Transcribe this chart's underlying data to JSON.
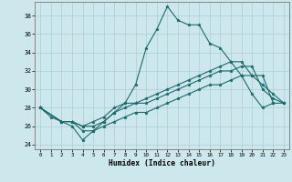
{
  "xlabel": "Humidex (Indice chaleur)",
  "xlim": [
    -0.5,
    23.5
  ],
  "ylim": [
    23.5,
    39.5
  ],
  "yticks": [
    24,
    26,
    28,
    30,
    32,
    34,
    36,
    38
  ],
  "xticks": [
    0,
    1,
    2,
    3,
    4,
    5,
    6,
    7,
    8,
    9,
    10,
    11,
    12,
    13,
    14,
    15,
    16,
    17,
    18,
    19,
    20,
    21,
    22,
    23
  ],
  "bg_color": "#cde8ed",
  "line_color": "#1a6b6b",
  "grid_color": "#a8cdd4",
  "line1_x": [
    0,
    1,
    2,
    3,
    4,
    5,
    6,
    7,
    8,
    9,
    10,
    11,
    12,
    13,
    14,
    15,
    16,
    17,
    18,
    19,
    20,
    21,
    22
  ],
  "line1_y": [
    28,
    27,
    26.5,
    26,
    24.5,
    25.5,
    26.5,
    27.5,
    28.5,
    30.5,
    34.5,
    36.5,
    39,
    37.5,
    37,
    37,
    35,
    34.5,
    33,
    31.5,
    29.5,
    28,
    28.5
  ],
  "line2_x": [
    0,
    2,
    3,
    4,
    5,
    6,
    7,
    8,
    9,
    10,
    11,
    12,
    13,
    14,
    15,
    16,
    17,
    18,
    19,
    20,
    21,
    22,
    23
  ],
  "line2_y": [
    28,
    26.5,
    26.5,
    26,
    26.5,
    27,
    28,
    28.5,
    28.5,
    29,
    29.5,
    30,
    30.5,
    31,
    31.5,
    32,
    32.5,
    33,
    33,
    31.5,
    30.5,
    29.5,
    28.5
  ],
  "line3_x": [
    0,
    2,
    3,
    4,
    5,
    6,
    7,
    8,
    9,
    10,
    11,
    12,
    13,
    14,
    15,
    16,
    17,
    18,
    19,
    20,
    21,
    22,
    23
  ],
  "line3_y": [
    28,
    26.5,
    26.5,
    26,
    26,
    26.5,
    27.5,
    28,
    28.5,
    28.5,
    29,
    29.5,
    30,
    30.5,
    31,
    31.5,
    32,
    32,
    32.5,
    32.5,
    30,
    29,
    28.5
  ],
  "line4_x": [
    0,
    2,
    3,
    4,
    5,
    6,
    7,
    8,
    9,
    10,
    11,
    12,
    13,
    14,
    15,
    16,
    17,
    18,
    19,
    20,
    21,
    22,
    23
  ],
  "line4_y": [
    28,
    26.5,
    26.5,
    25.5,
    25.5,
    26,
    26.5,
    27,
    27.5,
    27.5,
    28,
    28.5,
    29,
    29.5,
    30,
    30.5,
    30.5,
    31,
    31.5,
    31.5,
    31.5,
    28.5,
    28.5
  ]
}
